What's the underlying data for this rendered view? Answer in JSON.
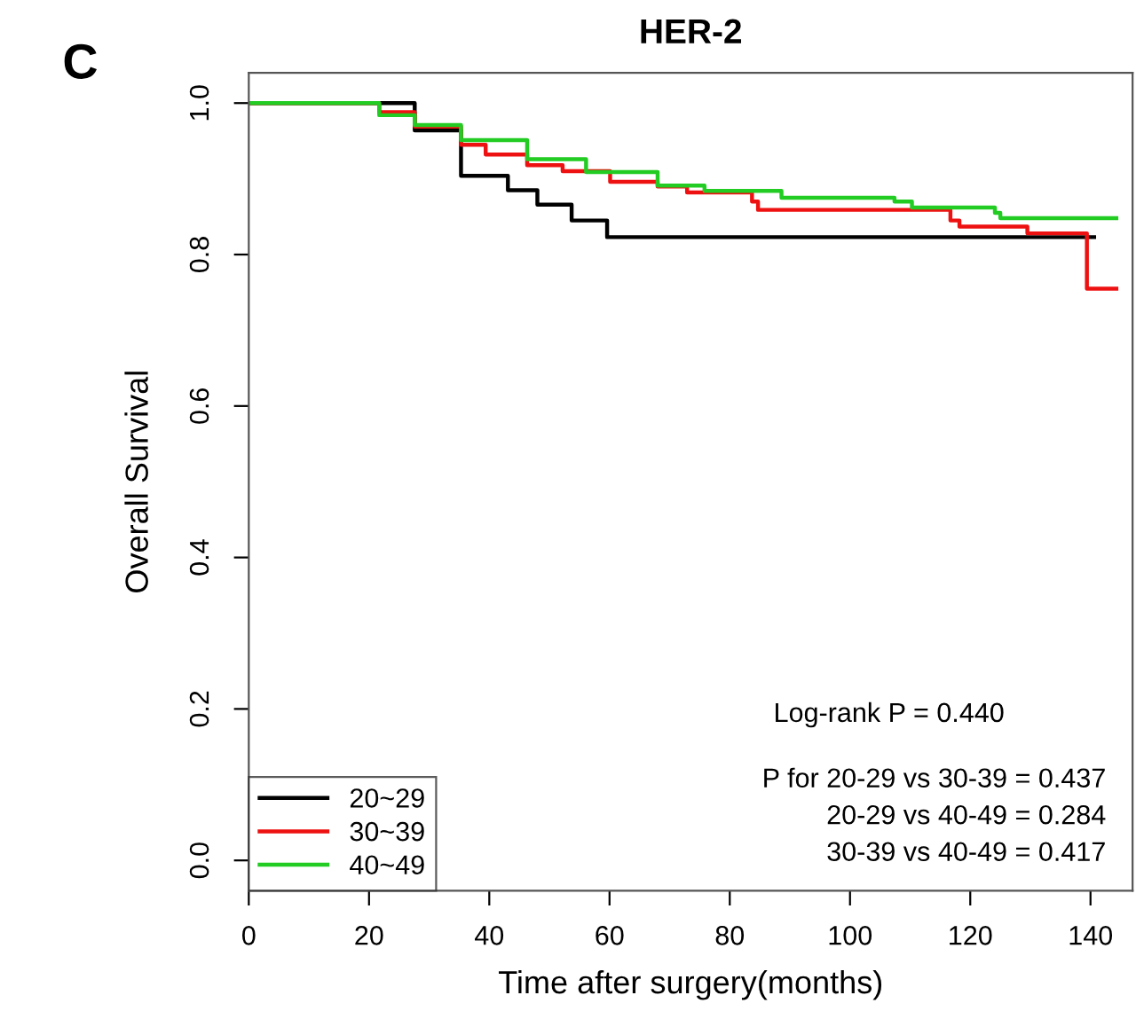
{
  "chart_data": {
    "type": "step",
    "title": "HER-2",
    "xlabel": "Time after surgery(months)",
    "ylabel": "Overall Survival",
    "annotations": [
      "C",
      "Log-rank P = 0.440",
      "P for 20-29 vs 30-39 = 0.437",
      "20-29 vs 40-49 = 0.284",
      "30-39 vs 40-49 = 0.417"
    ],
    "series": [
      {
        "name": "20~29",
        "color": "#000000",
        "x": [
          0,
          27.6,
          35.3,
          43.1,
          48.0,
          53.7,
          59.6,
          140.6
        ],
        "values": [
          1.0,
          0.964,
          0.904,
          0.885,
          0.866,
          0.845,
          0.823,
          0.823
        ]
      },
      {
        "name": "30~39",
        "color": "#ee1111",
        "x": [
          0,
          21.7,
          27.6,
          35.3,
          39.4,
          46.3,
          52.2,
          60.1,
          68.0,
          72.9,
          83.7,
          84.7,
          116.7,
          118.2,
          129.5,
          139.4,
          144.3
        ],
        "values": [
          1.0,
          0.988,
          0.969,
          0.945,
          0.932,
          0.918,
          0.91,
          0.896,
          0.89,
          0.882,
          0.87,
          0.859,
          0.845,
          0.837,
          0.828,
          0.755,
          0.755
        ]
      },
      {
        "name": "40~49",
        "color": "#22cc22",
        "x": [
          0,
          13.8,
          21.7,
          27.6,
          35.3,
          46.3,
          56.1,
          68.0,
          75.8,
          88.6,
          107.4,
          110.3,
          124.1,
          125.0,
          144.3
        ],
        "values": [
          1.0,
          1.0,
          0.984,
          0.971,
          0.951,
          0.926,
          0.909,
          0.891,
          0.884,
          0.875,
          0.87,
          0.862,
          0.855,
          0.848,
          0.848
        ]
      }
    ],
    "xlim": [
      0,
      147
    ],
    "ylim": [
      -0.04,
      1.04
    ],
    "xticks": [
      0,
      20,
      40,
      60,
      80,
      100,
      120,
      140
    ],
    "yticks": [
      {
        "value": 0,
        "label": "0.0"
      },
      {
        "value": 0.2,
        "label": "0.2"
      },
      {
        "value": 0.4,
        "label": "0.4"
      },
      {
        "value": 0.6,
        "label": "0.6"
      },
      {
        "value": 0.8,
        "label": "0.8"
      },
      {
        "value": 1,
        "label": "1.0"
      }
    ],
    "legend": "bottom left",
    "grid": false,
    "line_style": "solid"
  }
}
